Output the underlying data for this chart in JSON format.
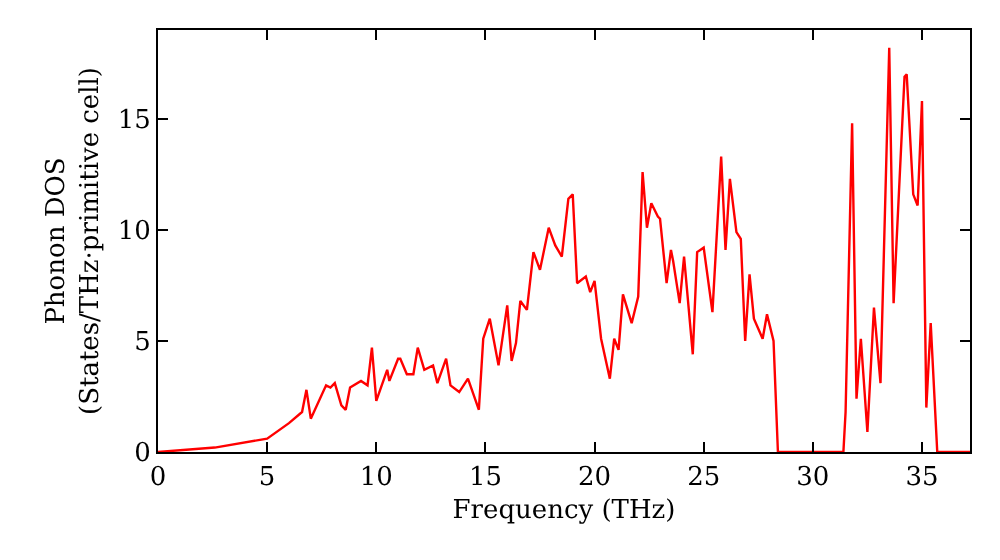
{
  "chart_data": {
    "type": "line",
    "xlabel": "Frequency (THz)",
    "ylabel": "Phonon DOS\n(States/THz·primitive cell)",
    "xlim": [
      0,
      37.2
    ],
    "ylim": [
      0,
      19
    ],
    "xticks": [
      0,
      5,
      10,
      15,
      20,
      25,
      30,
      35
    ],
    "yticks": [
      0,
      5,
      10,
      15
    ],
    "marker": "none",
    "line_style": "solid",
    "series": [
      {
        "color": "#ff0000",
        "x": [
          0,
          2.6,
          5.0,
          6.0,
          6.6,
          6.8,
          7.0,
          7.7,
          7.9,
          8.1,
          8.4,
          8.6,
          8.8,
          9.3,
          9.6,
          9.8,
          10.0,
          10.5,
          10.6,
          11.0,
          11.1,
          11.4,
          11.7,
          11.9,
          12.2,
          12.6,
          12.8,
          13.2,
          13.4,
          13.8,
          14.2,
          14.7,
          14.9,
          15.2,
          15.6,
          16.0,
          16.2,
          16.4,
          16.6,
          16.9,
          17.2,
          17.5,
          17.9,
          18.2,
          18.5,
          18.8,
          19.0,
          19.2,
          19.6,
          19.8,
          20.0,
          20.3,
          20.7,
          20.9,
          21.1,
          21.3,
          21.7,
          22.0,
          22.2,
          22.4,
          22.6,
          22.9,
          23.0,
          23.3,
          23.5,
          23.6,
          23.9,
          24.1,
          24.5,
          24.7,
          25.0,
          25.4,
          25.8,
          26.0,
          26.2,
          26.5,
          26.7,
          26.9,
          27.1,
          27.3,
          27.7,
          27.9,
          28.2,
          28.4,
          31.4,
          31.5,
          31.8,
          32.0,
          32.2,
          32.5,
          32.8,
          33.1,
          33.5,
          33.7,
          34.2,
          34.3,
          34.6,
          34.8,
          35.0,
          35.2,
          35.4,
          35.7,
          37.2
        ],
        "values": [
          0,
          0.2,
          0.6,
          1.3,
          1.8,
          2.8,
          1.5,
          3.0,
          2.9,
          3.1,
          2.1,
          1.9,
          2.9,
          3.2,
          3.0,
          4.7,
          2.3,
          3.7,
          3.2,
          4.2,
          4.2,
          3.5,
          3.5,
          4.7,
          3.7,
          3.9,
          3.1,
          4.2,
          3.0,
          2.7,
          3.3,
          1.9,
          5.1,
          6.0,
          3.9,
          6.6,
          4.1,
          4.9,
          6.8,
          6.4,
          9.0,
          8.2,
          10.1,
          9.3,
          8.8,
          11.4,
          11.6,
          7.6,
          7.9,
          7.2,
          7.7,
          5.1,
          3.3,
          5.1,
          4.6,
          7.1,
          5.8,
          7.0,
          12.6,
          10.1,
          11.2,
          10.6,
          10.5,
          7.6,
          9.1,
          8.6,
          6.7,
          8.8,
          4.4,
          9.0,
          9.2,
          6.3,
          13.3,
          9.1,
          12.3,
          9.9,
          9.6,
          5.0,
          8.0,
          6.0,
          5.1,
          6.2,
          5.0,
          0,
          0,
          1.8,
          14.8,
          2.4,
          5.1,
          0.9,
          6.5,
          3.1,
          18.2,
          6.7,
          16.9,
          17.0,
          11.6,
          11.1,
          15.8,
          2.0,
          5.8,
          0,
          0
        ]
      }
    ]
  }
}
